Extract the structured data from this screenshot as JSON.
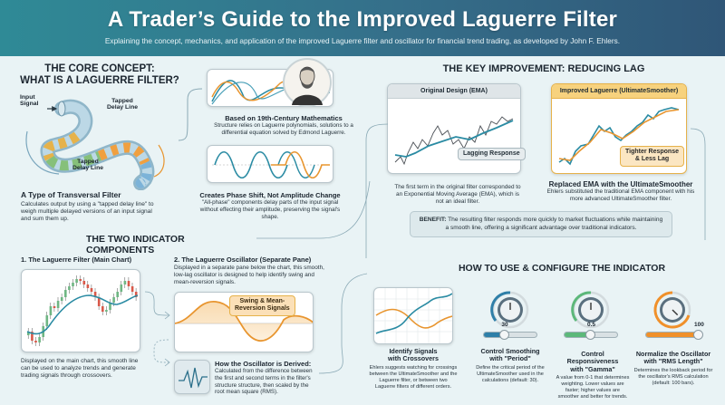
{
  "header": {
    "title": "A Trader’s Guide to the Improved Laguerre Filter",
    "subtitle": "Explaining the concept, mechanics, and application of the improved Laguerre filter and oscillator for financial trend trading, as developed by John F. Ehlers."
  },
  "core_concept": {
    "title_line1": "THE CORE CONCEPT:",
    "title_line2": "WHAT IS A LAGUERRE FILTER?",
    "diagram_labels": {
      "input": "Input\nSignal",
      "input_line1": "Input",
      "input_line2": "Signal",
      "tapped_top_line1": "Tapped",
      "tapped_top_line2": "Delay Line",
      "tapped_bottom_line1": "Tapped",
      "tapped_bottom_line2": "Delay Line"
    },
    "transversal": {
      "heading": "A Type of Transversal Filter",
      "body": "Calculates output by using a \"tapped delay line\" to weigh multiple delayed versions of an input signal and sum them up."
    },
    "mathematics": {
      "heading": "Based on 19th-Century Mathematics",
      "body": "Structure relies on Laguerre polynomials, solutions to a differential equation solved by Edmond Laguerre."
    },
    "phase_shift": {
      "heading": "Creates Phase Shift, Not Amplitude Change",
      "body": "\"All-phase\" components delay parts of the input signal without effecting their amplitude, preserving the signal's shape."
    }
  },
  "key_improvement": {
    "title": "THE KEY IMPROVEMENT: REDUCING LAG",
    "original": {
      "card_title": "Original Design (EMA)",
      "callout": "Lagging Response",
      "body": "The first term in the original filter corresponded to an Exponential Moving Average (EMA), which is not an ideal filter."
    },
    "improved": {
      "card_title": "Improved Laguerre (UltimateSmoother)",
      "callout_line1": "Tighter Response",
      "callout_line2": "& Less Lag",
      "heading": "Replaced EMA with the UltimateSmoother",
      "body": "Ehlers substituted the traditional EMA component with his more advanced UltimateSmoother filter."
    },
    "benefit_label": "BENEFIT:",
    "benefit_text": " The resulting filter responds more quickly to market fluctuations while maintaining a smooth line, offering a significant advantage over traditional indicators."
  },
  "two_components": {
    "title": "THE TWO INDICATOR COMPONENTS",
    "filter": {
      "heading": "1. The Laguerre Filter (Main Chart)",
      "body": "Displayed on the main chart, this smooth line can be used to analyze trends and generate trading signals through crossovers."
    },
    "oscillator": {
      "heading": "2. The Laguerre Oscillator (Separate Pane)",
      "body": "Displayed in a separate pane below the chart, this smooth, low-lag oscillator is designed to help identify swing and mean-reversion signals.",
      "callout_line1": "Swing & Mean-",
      "callout_line2": "Reversion Signals"
    },
    "derived": {
      "heading": "How the Oscillator is Derived:",
      "body": "Calculated from the difference between the first and second terms in the filter's structure structure, then scaled by the root mean square (RMS)."
    }
  },
  "how_to_use": {
    "title": "HOW TO USE & CONFIGURE THE INDICATOR",
    "items": [
      {
        "heading_line1": "Identify Signals",
        "heading_line2": "with Crossovers",
        "body": "Ehlers suggests watching for crossings between the UltimateSmoother and the Laguerre filter, or between two Laguerre filters of different orders."
      },
      {
        "heading_line1": "Control Smoothing",
        "heading_line2": "with \"Period\"",
        "body": "Define the critical period of the UltimateSmoother used in the calculations (default: 30).",
        "slider_value": "30",
        "slider_percent": 40,
        "color": "#2e7fa8"
      },
      {
        "heading_line1": "Control Responsiveness",
        "heading_line2": "with \"Gamma\"",
        "body": "A value from 0-1 that determines weighting. Lower values are faster; higher values are smoother and better for trends.",
        "slider_value": "0.5",
        "slider_percent": 50,
        "color": "#5cb87a"
      },
      {
        "heading_line1": "Normalize the Oscillator",
        "heading_line2": "with \"RMS Length\"",
        "body": "Determines the lookback period for the oscillator's RMS calculation (default: 100 bars).",
        "slider_value": "100",
        "slider_percent": 100,
        "color": "#f0902a"
      }
    ]
  },
  "colors": {
    "teal": "#2a8ba3",
    "orange": "#e8952f",
    "header_start": "#2f8a96",
    "header_end": "#2f5677",
    "bull_candle": "#6fb683",
    "bear_candle": "#d9594a"
  }
}
